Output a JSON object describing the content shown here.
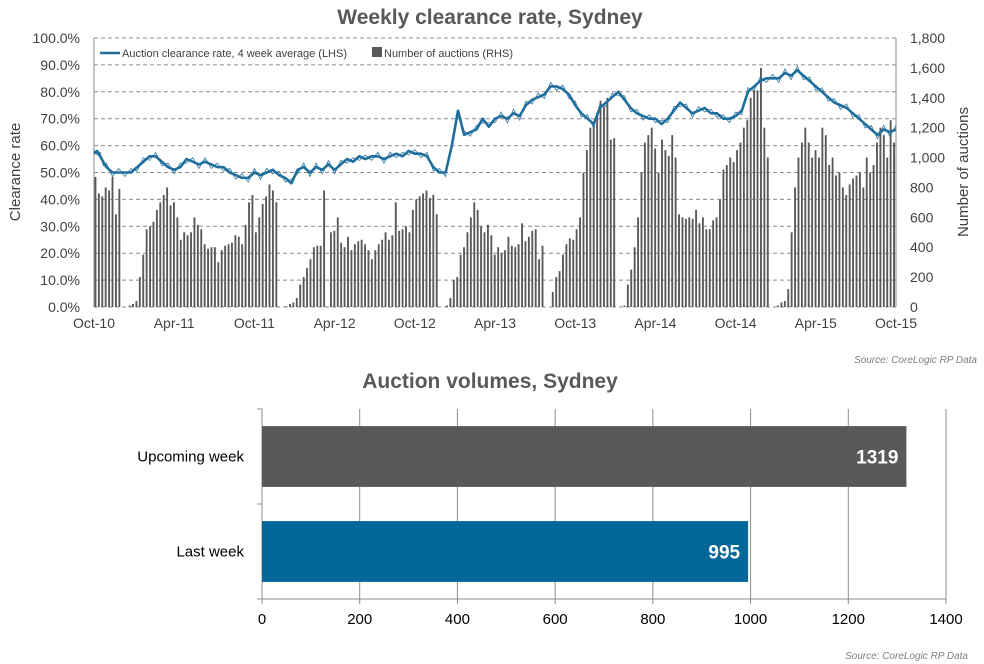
{
  "chart_data": [
    {
      "type": "line+bar",
      "title": "Weekly clearance rate, Sydney",
      "ylabel_left": "Clearance rate",
      "ylabel_right": "Number of auctions",
      "ylim_left": [
        0,
        100
      ],
      "ylim_right": [
        0,
        1800
      ],
      "yticks_left": [
        "0.0%",
        "10.0%",
        "20.0%",
        "30.0%",
        "40.0%",
        "50.0%",
        "60.0%",
        "70.0%",
        "80.0%",
        "90.0%",
        "100.0%"
      ],
      "yticks_right": [
        "0",
        "200",
        "400",
        "600",
        "800",
        "1,000",
        "1,200",
        "1,400",
        "1,600",
        "1,800"
      ],
      "xticks": [
        "Oct-10",
        "Apr-11",
        "Oct-11",
        "Apr-12",
        "Oct-12",
        "Apr-13",
        "Oct-13",
        "Apr-14",
        "Oct-14",
        "Apr-15",
        "Oct-15"
      ],
      "grid": "horizontal dashed",
      "legend": "top-left",
      "colors": {
        "line": "#1f6e9c",
        "bars": "#595959"
      },
      "series": [
        {
          "name": "Auction clearance rate, 4 week average (LHS)",
          "axis": "left",
          "kind": "line",
          "x": [
            0,
            1,
            2,
            3,
            4,
            6,
            8,
            10,
            12,
            14,
            16,
            18,
            20,
            22,
            24,
            26,
            28,
            30,
            32,
            34,
            36,
            38,
            40,
            42,
            44,
            46,
            48,
            50,
            52,
            54,
            56,
            58,
            60,
            62,
            64,
            66,
            68,
            70,
            72,
            74,
            76,
            78,
            80,
            82,
            84,
            86,
            88,
            90,
            92,
            94,
            96,
            98,
            100,
            102,
            104,
            106,
            108,
            110,
            112,
            114,
            116,
            118,
            120,
            122,
            124,
            126,
            128,
            130,
            132,
            134,
            136,
            138,
            140,
            142,
            144,
            146,
            148,
            150,
            152,
            154,
            156,
            158,
            160,
            162,
            164,
            166,
            168,
            170,
            172,
            174,
            176,
            178,
            180,
            182,
            184,
            186,
            188,
            190,
            192,
            194,
            196,
            198,
            200,
            202,
            204,
            206,
            208,
            210,
            212,
            214,
            216,
            218,
            220,
            222,
            224,
            226,
            228,
            230,
            232,
            234,
            236,
            238,
            240,
            242,
            244,
            246,
            248,
            250,
            252,
            254,
            256,
            258,
            260
          ],
          "values": [
            57,
            58,
            56,
            54,
            52,
            50,
            50,
            50,
            50,
            52,
            54,
            56,
            56,
            54,
            52,
            51,
            52,
            55,
            54,
            53,
            54,
            53,
            52,
            52,
            50,
            49,
            48,
            48,
            50,
            49,
            50,
            51,
            49,
            48,
            46,
            51,
            52,
            50,
            52,
            51,
            53,
            51,
            53,
            55,
            54,
            56,
            55,
            56,
            56,
            55,
            56,
            57,
            56,
            58,
            57,
            57,
            56,
            52,
            50,
            50,
            60,
            73,
            64,
            65,
            66,
            70,
            67,
            70,
            71,
            70,
            72,
            71,
            75,
            77,
            78,
            79,
            82,
            82,
            81,
            79,
            75,
            72,
            70,
            68,
            74,
            76,
            78,
            80,
            77,
            74,
            72,
            71,
            70,
            70,
            68,
            70,
            73,
            76,
            74,
            72,
            73,
            74,
            72,
            72,
            70,
            70,
            71,
            73,
            80,
            82,
            84,
            85,
            85,
            85,
            87,
            86,
            88,
            86,
            84,
            82,
            80,
            78,
            76,
            75,
            74,
            72,
            70,
            68,
            66,
            64,
            66,
            65,
            66
          ]
        },
        {
          "name": "Number of auctions (RHS)",
          "axis": "right",
          "kind": "bar",
          "values": [
            870,
            760,
            740,
            800,
            780,
            870,
            620,
            790,
            0,
            0,
            10,
            20,
            40,
            200,
            350,
            520,
            540,
            570,
            650,
            700,
            750,
            800,
            680,
            700,
            600,
            450,
            500,
            480,
            500,
            600,
            550,
            520,
            420,
            390,
            400,
            400,
            300,
            380,
            410,
            420,
            430,
            480,
            470,
            420,
            550,
            700,
            750,
            500,
            600,
            690,
            740,
            820,
            780,
            700,
            0,
            0,
            5,
            20,
            30,
            60,
            150,
            200,
            260,
            320,
            400,
            410,
            410,
            780,
            0,
            500,
            510,
            600,
            430,
            400,
            470,
            380,
            420,
            440,
            450,
            420,
            380,
            320,
            380,
            420,
            450,
            500,
            450,
            480,
            700,
            510,
            520,
            540,
            500,
            650,
            720,
            740,
            760,
            780,
            730,
            750,
            620,
            0,
            0,
            10,
            60,
            180,
            200,
            350,
            400,
            500,
            600,
            700,
            650,
            540,
            500,
            550,
            480,
            350,
            400,
            360,
            380,
            470,
            410,
            400,
            420,
            560,
            440,
            470,
            510,
            520,
            320,
            410,
            0,
            0,
            100,
            200,
            240,
            350,
            420,
            460,
            450,
            520,
            600,
            900,
            1050,
            1200,
            1240,
            1300,
            1380,
            1340,
            1400,
            1120,
            1130,
            0,
            0,
            10,
            150,
            250,
            400,
            600,
            900,
            1100,
            1150,
            1200,
            1060,
            900,
            1120,
            1050,
            1010,
            1150,
            1000,
            620,
            600,
            590,
            600,
            590,
            650,
            560,
            600,
            520,
            520,
            580,
            600,
            720,
            920,
            950,
            1000,
            970,
            1050,
            1100,
            1200,
            1250,
            1400,
            1450,
            1450,
            1600,
            1200,
            1000,
            0,
            0,
            10,
            30,
            40,
            120,
            500,
            800,
            1000,
            1100,
            1200,
            1100,
            1000,
            1050,
            1000,
            1200,
            1150,
            950,
            1000,
            880,
            900,
            800,
            750,
            820,
            860,
            880,
            900,
            800,
            1000,
            900,
            950,
            1100,
            1200,
            1150,
            1000,
            1250,
            1100
          ]
        }
      ]
    },
    {
      "type": "bar",
      "orientation": "horizontal",
      "title": "Auction volumes, Sydney",
      "categories": [
        "Upcoming week",
        "Last week"
      ],
      "values": [
        1319,
        995
      ],
      "data_labels": [
        "1319",
        "995"
      ],
      "xlim": [
        0,
        1400
      ],
      "xticks": [
        "0",
        "200",
        "400",
        "600",
        "800",
        "1000",
        "1200",
        "1400"
      ],
      "grid": "vertical",
      "colors": {
        "Upcoming week": "#595959",
        "Last week": "#04679a"
      }
    }
  ],
  "sources": [
    "Source: CoreLogic  RP Data",
    "Source: CoreLogic  RP Data"
  ]
}
